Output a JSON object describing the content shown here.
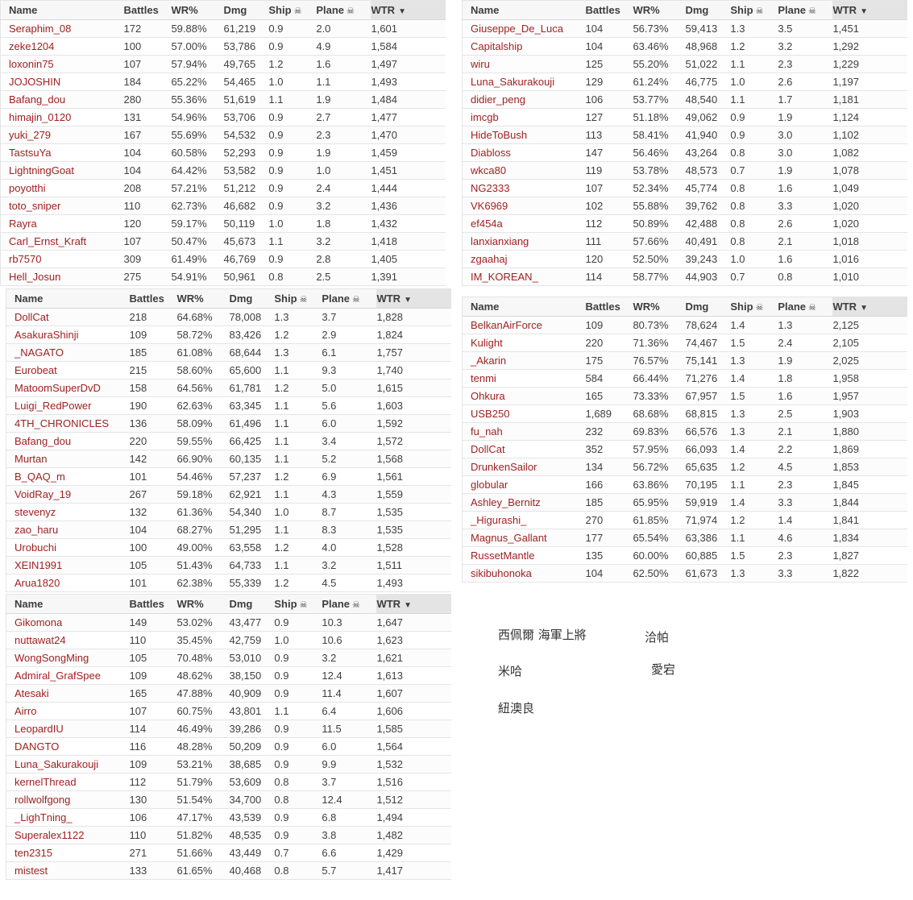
{
  "icons": {
    "skull": "☠",
    "sort_desc": "▼"
  },
  "colors": {
    "player_link": "#a02122",
    "body_text": "#3f3f3f",
    "header_text": "#3d3d3d",
    "header_bg": "#f7f7f7",
    "sorted_header_bg": "#e4e4e4",
    "row_border": "#e5e5e5"
  },
  "columns": [
    {
      "key": "name",
      "label": "Name"
    },
    {
      "key": "battles",
      "label": "Battles"
    },
    {
      "key": "wr",
      "label": "WR%"
    },
    {
      "key": "dmg",
      "label": "Dmg"
    },
    {
      "key": "ship",
      "label": "Ship",
      "icon": "skull"
    },
    {
      "key": "plane",
      "label": "Plane",
      "icon": "skull"
    },
    {
      "key": "wtr",
      "label": "WTR",
      "sorted": true,
      "sort_icon": "sort_desc"
    }
  ],
  "tables": [
    {
      "id": "top-left",
      "rows": [
        [
          "Seraphim_08",
          "172",
          "59.88%",
          "61,219",
          "0.9",
          "2.0",
          "1,601"
        ],
        [
          "zeke1204",
          "100",
          "57.00%",
          "53,786",
          "0.9",
          "4.9",
          "1,584"
        ],
        [
          "loxonin75",
          "107",
          "57.94%",
          "49,765",
          "1.2",
          "1.6",
          "1,497"
        ],
        [
          "JOJOSHIN",
          "184",
          "65.22%",
          "54,465",
          "1.0",
          "1.1",
          "1,493"
        ],
        [
          "Bafang_dou",
          "280",
          "55.36%",
          "51,619",
          "1.1",
          "1.9",
          "1,484"
        ],
        [
          "himajin_0120",
          "131",
          "54.96%",
          "53,706",
          "0.9",
          "2.7",
          "1,477"
        ],
        [
          "yuki_279",
          "167",
          "55.69%",
          "54,532",
          "0.9",
          "2.3",
          "1,470"
        ],
        [
          "TastsuYa",
          "104",
          "60.58%",
          "52,293",
          "0.9",
          "1.9",
          "1,459"
        ],
        [
          "LightningGoat",
          "104",
          "64.42%",
          "53,582",
          "0.9",
          "1.0",
          "1,451"
        ],
        [
          "poyotthi",
          "208",
          "57.21%",
          "51,212",
          "0.9",
          "2.4",
          "1,444"
        ],
        [
          "toto_sniper",
          "110",
          "62.73%",
          "46,682",
          "0.9",
          "3.2",
          "1,436"
        ],
        [
          "Rayra",
          "120",
          "59.17%",
          "50,119",
          "1.0",
          "1.8",
          "1,432"
        ],
        [
          "Carl_Ernst_Kraft",
          "107",
          "50.47%",
          "45,673",
          "1.1",
          "3.2",
          "1,418"
        ],
        [
          "rb7570",
          "309",
          "61.49%",
          "46,769",
          "0.9",
          "2.8",
          "1,405"
        ],
        [
          "Hell_Josun",
          "275",
          "54.91%",
          "50,961",
          "0.8",
          "2.5",
          "1,391"
        ]
      ]
    },
    {
      "id": "top-right",
      "rows": [
        [
          "Giuseppe_De_Luca",
          "104",
          "56.73%",
          "59,413",
          "1.3",
          "3.5",
          "1,451"
        ],
        [
          "Capitalship",
          "104",
          "63.46%",
          "48,968",
          "1.2",
          "3.2",
          "1,292"
        ],
        [
          "wiru",
          "125",
          "55.20%",
          "51,022",
          "1.1",
          "2.3",
          "1,229"
        ],
        [
          "Luna_Sakurakouji",
          "129",
          "61.24%",
          "46,775",
          "1.0",
          "2.6",
          "1,197"
        ],
        [
          "didier_peng",
          "106",
          "53.77%",
          "48,540",
          "1.1",
          "1.7",
          "1,181"
        ],
        [
          "imcgb",
          "127",
          "51.18%",
          "49,062",
          "0.9",
          "1.9",
          "1,124"
        ],
        [
          "HideToBush",
          "113",
          "58.41%",
          "41,940",
          "0.9",
          "3.0",
          "1,102"
        ],
        [
          "Diabloss",
          "147",
          "56.46%",
          "43,264",
          "0.8",
          "3.0",
          "1,082"
        ],
        [
          "wkca80",
          "119",
          "53.78%",
          "48,573",
          "0.7",
          "1.9",
          "1,078"
        ],
        [
          "NG2333",
          "107",
          "52.34%",
          "45,774",
          "0.8",
          "1.6",
          "1,049"
        ],
        [
          "VK6969",
          "102",
          "55.88%",
          "39,762",
          "0.8",
          "3.3",
          "1,020"
        ],
        [
          "ef454a",
          "112",
          "50.89%",
          "42,488",
          "0.8",
          "2.6",
          "1,020"
        ],
        [
          "lanxianxiang",
          "111",
          "57.66%",
          "40,491",
          "0.8",
          "2.1",
          "1,018"
        ],
        [
          "zgaahaj",
          "120",
          "52.50%",
          "39,243",
          "1.0",
          "1.6",
          "1,016"
        ],
        [
          "IM_KOREAN_",
          "114",
          "58.77%",
          "44,903",
          "0.7",
          "0.8",
          "1,010"
        ]
      ]
    },
    {
      "id": "middle-left",
      "rows": [
        [
          "DollCat",
          "218",
          "64.68%",
          "78,008",
          "1.3",
          "3.7",
          "1,828"
        ],
        [
          "AsakuraShinji",
          "109",
          "58.72%",
          "83,426",
          "1.2",
          "2.9",
          "1,824"
        ],
        [
          "_NAGATO",
          "185",
          "61.08%",
          "68,644",
          "1.3",
          "6.1",
          "1,757"
        ],
        [
          "Eurobeat",
          "215",
          "58.60%",
          "65,600",
          "1.1",
          "9.3",
          "1,740"
        ],
        [
          "MatoomSuperDvD",
          "158",
          "64.56%",
          "61,781",
          "1.2",
          "5.0",
          "1,615"
        ],
        [
          "Luigi_RedPower",
          "190",
          "62.63%",
          "63,345",
          "1.1",
          "5.6",
          "1,603"
        ],
        [
          "4TH_CHRONICLES",
          "136",
          "58.09%",
          "61,496",
          "1.1",
          "6.0",
          "1,592"
        ],
        [
          "Bafang_dou",
          "220",
          "59.55%",
          "66,425",
          "1.1",
          "3.4",
          "1,572"
        ],
        [
          "Murtan",
          "142",
          "66.90%",
          "60,135",
          "1.1",
          "5.2",
          "1,568"
        ],
        [
          "B_QAQ_m",
          "101",
          "54.46%",
          "57,237",
          "1.2",
          "6.9",
          "1,561"
        ],
        [
          "VoidRay_19",
          "267",
          "59.18%",
          "62,921",
          "1.1",
          "4.3",
          "1,559"
        ],
        [
          "stevenyz",
          "132",
          "61.36%",
          "54,340",
          "1.0",
          "8.7",
          "1,535"
        ],
        [
          "zao_haru",
          "104",
          "68.27%",
          "51,295",
          "1.1",
          "8.3",
          "1,535"
        ],
        [
          "Urobuchi",
          "100",
          "49.00%",
          "63,558",
          "1.2",
          "4.0",
          "1,528"
        ],
        [
          "XEIN1991",
          "105",
          "51.43%",
          "64,733",
          "1.1",
          "3.2",
          "1,511"
        ],
        [
          "Arua1820",
          "101",
          "62.38%",
          "55,339",
          "1.2",
          "4.5",
          "1,493"
        ]
      ]
    },
    {
      "id": "middle-right",
      "rows": [
        [
          "BelkanAirForce",
          "109",
          "80.73%",
          "78,624",
          "1.4",
          "1.3",
          "2,125"
        ],
        [
          "Kulight",
          "220",
          "71.36%",
          "74,467",
          "1.5",
          "2.4",
          "2,105"
        ],
        [
          "_Akarin",
          "175",
          "76.57%",
          "75,141",
          "1.3",
          "1.9",
          "2,025"
        ],
        [
          "tenmi",
          "584",
          "66.44%",
          "71,276",
          "1.4",
          "1.8",
          "1,958"
        ],
        [
          "Ohkura",
          "165",
          "73.33%",
          "67,957",
          "1.5",
          "1.6",
          "1,957"
        ],
        [
          "USB250",
          "1,689",
          "68.68%",
          "68,815",
          "1.3",
          "2.5",
          "1,903"
        ],
        [
          "fu_nah",
          "232",
          "69.83%",
          "66,576",
          "1.3",
          "2.1",
          "1,880"
        ],
        [
          "DollCat",
          "352",
          "57.95%",
          "66,093",
          "1.4",
          "2.2",
          "1,869"
        ],
        [
          "DrunkenSailor",
          "134",
          "56.72%",
          "65,635",
          "1.2",
          "4.5",
          "1,853"
        ],
        [
          "globular",
          "166",
          "63.86%",
          "70,195",
          "1.1",
          "2.3",
          "1,845"
        ],
        [
          "Ashley_Bernitz",
          "185",
          "65.95%",
          "59,919",
          "1.4",
          "3.3",
          "1,844"
        ],
        [
          "_Higurashi_",
          "270",
          "61.85%",
          "71,974",
          "1.2",
          "1.4",
          "1,841"
        ],
        [
          "Magnus_Gallant",
          "177",
          "65.54%",
          "63,386",
          "1.1",
          "4.6",
          "1,834"
        ],
        [
          "RussetMantle",
          "135",
          "60.00%",
          "60,885",
          "1.5",
          "2.3",
          "1,827"
        ],
        [
          "sikibuhonoka",
          "104",
          "62.50%",
          "61,673",
          "1.3",
          "3.3",
          "1,822"
        ]
      ]
    },
    {
      "id": "bottom-left",
      "rows": [
        [
          "Gikomona",
          "149",
          "53.02%",
          "43,477",
          "0.9",
          "10.3",
          "1,647"
        ],
        [
          "nuttawat24",
          "110",
          "35.45%",
          "42,759",
          "1.0",
          "10.6",
          "1,623"
        ],
        [
          "WongSongMing",
          "105",
          "70.48%",
          "53,010",
          "0.9",
          "3.2",
          "1,621"
        ],
        [
          "Admiral_GrafSpee",
          "109",
          "48.62%",
          "38,150",
          "0.9",
          "12.4",
          "1,613"
        ],
        [
          "Atesaki",
          "165",
          "47.88%",
          "40,909",
          "0.9",
          "11.4",
          "1,607"
        ],
        [
          "Airro",
          "107",
          "60.75%",
          "43,801",
          "1.1",
          "6.4",
          "1,606"
        ],
        [
          "LeopardIU",
          "114",
          "46.49%",
          "39,286",
          "0.9",
          "11.5",
          "1,585"
        ],
        [
          "DANGTO",
          "116",
          "48.28%",
          "50,209",
          "0.9",
          "6.0",
          "1,564"
        ],
        [
          "Luna_Sakurakouji",
          "109",
          "53.21%",
          "38,685",
          "0.9",
          "9.9",
          "1,532"
        ],
        [
          "kernelThread",
          "112",
          "51.79%",
          "53,609",
          "0.8",
          "3.7",
          "1,516"
        ],
        [
          "rollwolfgong",
          "130",
          "51.54%",
          "34,700",
          "0.8",
          "12.4",
          "1,512"
        ],
        [
          "_LighTning_",
          "106",
          "47.17%",
          "43,539",
          "0.9",
          "6.8",
          "1,494"
        ],
        [
          "Superalex1122",
          "110",
          "51.82%",
          "48,535",
          "0.9",
          "3.8",
          "1,482"
        ],
        [
          "ten2315",
          "271",
          "51.66%",
          "43,449",
          "0.7",
          "6.6",
          "1,429"
        ],
        [
          "mistest",
          "133",
          "61.65%",
          "40,468",
          "0.8",
          "5.7",
          "1,417"
        ]
      ]
    }
  ],
  "ship_labels": [
    "西佩爾 海軍上將",
    "洽帕",
    "米哈",
    "愛宕",
    "紐澳良"
  ]
}
